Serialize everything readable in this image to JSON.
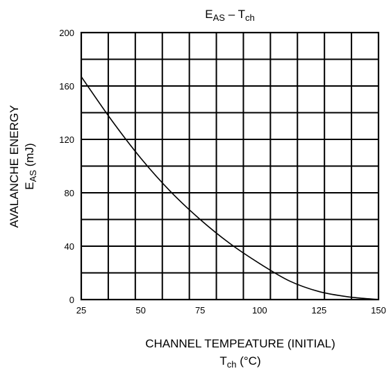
{
  "chart_data": {
    "type": "line",
    "title": {
      "main": "E",
      "sub1": "AS",
      "sep": " – T",
      "sub2": "ch"
    },
    "xlabel": {
      "line1": "CHANNEL TEMPEATURE (INITIAL)",
      "line2_main": "T",
      "line2_sub": "ch",
      "line2_unit": " (°C)"
    },
    "ylabel": {
      "line1": "AVALANCHE ENERGY",
      "line2_main": "E",
      "line2_sub": "AS",
      "line2_unit": "   (mJ)"
    },
    "xlim": [
      25,
      150
    ],
    "ylim": [
      0,
      200
    ],
    "x_tick_labels": [
      "25",
      "50",
      "75",
      "100",
      "125",
      "150"
    ],
    "y_tick_labels": [
      "0",
      "40",
      "80",
      "120",
      "160",
      "200"
    ],
    "x_tick_values": [
      25,
      50,
      75,
      100,
      125,
      150
    ],
    "y_tick_values": [
      0,
      40,
      80,
      120,
      160,
      200
    ],
    "grid": true,
    "grid_x_divisions": 11,
    "grid_y_divisions": 10,
    "series": [
      {
        "x": [
          25,
          37.5,
          50,
          62.5,
          75,
          87.5,
          100,
          112.5,
          125,
          137.5,
          150
        ],
        "y": [
          167,
          135,
          106,
          81,
          60,
          42,
          27,
          14,
          6,
          2,
          0
        ]
      }
    ]
  }
}
